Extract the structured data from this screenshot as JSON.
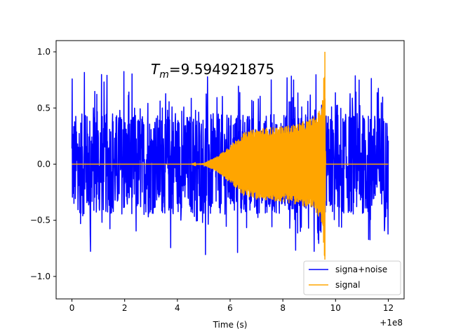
{
  "chart_data": {
    "type": "line",
    "title": "",
    "annotation": {
      "symbol": "T",
      "subscript": "m",
      "value_text": "=9.594921875"
    },
    "xlabel": "Time (s)",
    "x_offset_label": "+1e8",
    "ylabel": "",
    "xlim": [
      -0.6,
      12.6
    ],
    "ylim": [
      -1.2,
      1.1
    ],
    "xticks": [
      0,
      2,
      4,
      6,
      8,
      10,
      12
    ],
    "xtick_labels": [
      "0",
      "2",
      "4",
      "6",
      "8",
      "10",
      "12"
    ],
    "yticks": [
      -1.0,
      -0.5,
      0.0,
      0.5,
      1.0
    ],
    "ytick_labels": [
      "−1.0",
      "−0.5",
      "0.0",
      "0.5",
      "1.0"
    ],
    "grid": false,
    "legend_position": "lower-right",
    "series": [
      {
        "name": "signa+noise",
        "color": "#0000ff",
        "description": "dense noisy waveform spanning 0 to 12 with amplitude mostly within ±0.5, peaks to about ±0.85",
        "x_range": [
          0,
          12
        ],
        "typical_amplitude": 0.45,
        "max_peak": 0.86,
        "min_trough": -0.89
      },
      {
        "name": "signal",
        "color": "#ffa500",
        "description": "chirp signal: near zero until ~5, envelope grows to ~0.33 at 7, ~0.42 at 9.3, spike to 1.0 at 9.59, drops to ~0 after 9.7",
        "envelope": {
          "x": [
            0,
            4.5,
            5.0,
            5.5,
            6.0,
            6.5,
            7.0,
            7.5,
            8.0,
            8.5,
            9.0,
            9.3,
            9.5,
            9.59,
            9.62,
            12
          ],
          "y": [
            0,
            0.0,
            0.01,
            0.07,
            0.17,
            0.28,
            0.32,
            0.33,
            0.34,
            0.36,
            0.4,
            0.44,
            0.55,
            1.0,
            0.0,
            0.0
          ]
        }
      }
    ]
  }
}
